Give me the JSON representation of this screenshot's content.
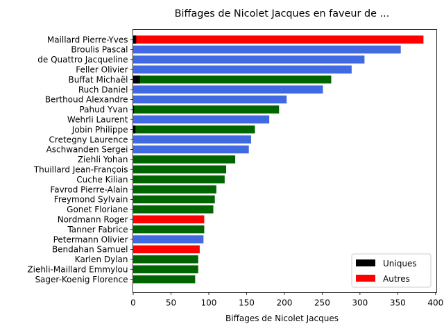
{
  "chart_data": {
    "type": "bar",
    "orientation": "horizontal",
    "title": "Biffages de Nicolet Jacques en faveur de ...",
    "xlabel": "Biffages de Nicolet Jacques",
    "ylabel": "",
    "xlim": [
      0,
      402
    ],
    "x_ticks": [
      0,
      50,
      100,
      150,
      200,
      250,
      300,
      350,
      400
    ],
    "legend": {
      "placement": "lower-right",
      "entries": [
        {
          "label": "Uniques",
          "color": "#000000"
        },
        {
          "label": "Autres",
          "color": "#ff0000"
        }
      ]
    },
    "colors": {
      "blue": "#4169e1",
      "green": "#006400",
      "red": "#ff0000",
      "black": "#000000"
    },
    "categories": [
      "Maillard Pierre-Yves",
      "Broulis Pascal",
      "de Quattro Jacqueline",
      "Feller Olivier",
      "Buffat Michaël",
      "Ruch Daniel",
      "Berthoud Alexandre",
      "Pahud Yvan",
      "Wehrli Laurent",
      "Jobin Philippe",
      "Cretegny Laurence",
      "Aschwanden Sergei",
      "Ziehli Yohan",
      "Thuillard Jean-François",
      "Cuche Kilian",
      "Favrod Pierre-Alain",
      "Freymond Sylvain",
      "Gonet Floriane",
      "Nordmann Roger",
      "Tanner Fabrice",
      "Petermann Olivier",
      "Bendahan Samuel",
      "Karlen Dylan",
      "Ziehli-Maillard Emmylou",
      "Sager-Koenig Florence"
    ],
    "values": [
      384,
      354,
      306,
      289,
      262,
      251,
      203,
      193,
      180,
      161,
      156,
      153,
      135,
      123,
      121,
      110,
      108,
      106,
      94,
      94,
      93,
      88,
      86,
      86,
      82
    ],
    "uniques": [
      4,
      0,
      0,
      0,
      9,
      0,
      0,
      1,
      0,
      3,
      0,
      0,
      0,
      0,
      0,
      0,
      0,
      0,
      0,
      0,
      0,
      0,
      0,
      0,
      0
    ],
    "bar_colors": [
      "red",
      "blue",
      "blue",
      "blue",
      "green",
      "blue",
      "blue",
      "green",
      "blue",
      "green",
      "blue",
      "blue",
      "green",
      "green",
      "green",
      "green",
      "green",
      "green",
      "red",
      "green",
      "blue",
      "red",
      "green",
      "green",
      "green"
    ]
  }
}
